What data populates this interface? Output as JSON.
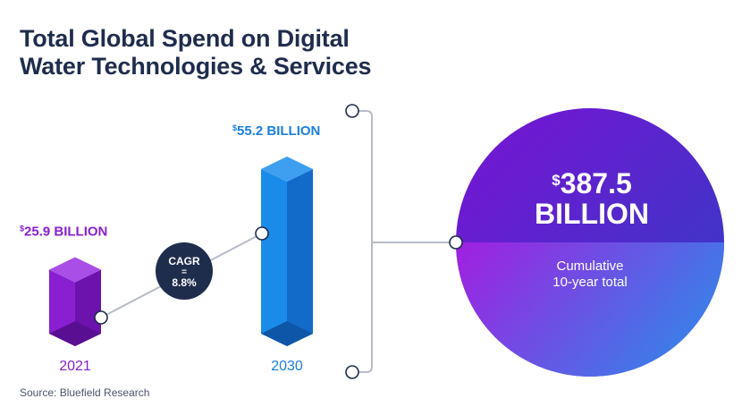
{
  "title": {
    "line1": "Total Global Spend on Digital",
    "line2": "Water Technologies & Services"
  },
  "chart_data": {
    "type": "bar",
    "title": "Total Global Spend on Digital Water Technologies & Services",
    "categories": [
      "2021",
      "2030"
    ],
    "values": [
      25.9,
      55.2
    ],
    "unit": "Billion USD",
    "value_labels": [
      "25.9 BILLION",
      "55.2 BILLION"
    ],
    "currency_symbol": "$",
    "cagr": {
      "label": "CAGR",
      "eq": "=",
      "value": "8.8%"
    },
    "cumulative": {
      "symbol": "$",
      "amount": "387.5",
      "unit": "BILLION",
      "caption_line1": "Cumulative",
      "caption_line2": "10-year total"
    },
    "source": "Source:  Bluefield Research"
  },
  "colors": {
    "title": "#1f2d4d",
    "purple": "#8a1fd1",
    "blue": "#1a7fe0",
    "navy": "#1f2d4d",
    "circle_top": "#6a1ed6",
    "circle_bottom": "#3a6ee6"
  }
}
